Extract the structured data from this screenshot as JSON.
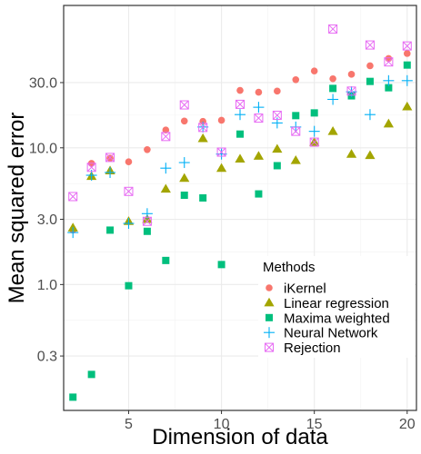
{
  "chart_data": {
    "type": "scatter",
    "xlabel": "Dimension of data",
    "ylabel": "Mean squared error",
    "xlim": [
      1.5,
      20.5
    ],
    "ylim": [
      0.12,
      110
    ],
    "y_scale": "log10",
    "x_ticks": [
      5,
      10,
      15,
      20
    ],
    "x_tick_labels": [
      "5",
      "10",
      "15",
      "20"
    ],
    "y_ticks": [
      0.3,
      1.0,
      3.0,
      10.0,
      30.0
    ],
    "y_tick_labels": [
      "0.3",
      "1.0",
      "3.0",
      "10.0",
      "30.0"
    ],
    "grid": true,
    "legend": {
      "title": "Methods",
      "placement": "bottom-right inside"
    },
    "series": [
      {
        "name": "iKernel",
        "shape": "circle",
        "color": "#F8766D",
        "x": [
          2,
          3,
          4,
          5,
          6,
          7,
          8,
          9,
          10,
          11,
          12,
          13,
          14,
          15,
          16,
          17,
          18,
          19,
          20
        ],
        "y": [
          2.5,
          7.7,
          8.4,
          7.9,
          9.7,
          13.5,
          15.7,
          15.6,
          15.9,
          26.3,
          25.5,
          26.0,
          31.5,
          36.5,
          32.0,
          34.5,
          39.8,
          45.0,
          49.0
        ]
      },
      {
        "name": "Linear regression",
        "shape": "triangle",
        "color": "#A3A500",
        "x": [
          2,
          3,
          4,
          5,
          6,
          7,
          8,
          9,
          10,
          11,
          12,
          13,
          14,
          15,
          16,
          17,
          18,
          19,
          20
        ],
        "y": [
          2.6,
          6.2,
          6.8,
          2.9,
          3.0,
          5.0,
          6.0,
          11.7,
          7.1,
          8.3,
          8.7,
          9.8,
          8.1,
          11.0,
          13.2,
          9.0,
          8.8,
          15.0,
          20.0
        ]
      },
      {
        "name": "Maxima weighted",
        "shape": "square",
        "color": "#00BF7D",
        "x": [
          2,
          3,
          4,
          5,
          6,
          7,
          8,
          9,
          10,
          11,
          12,
          13,
          14,
          15,
          16,
          17,
          18,
          19,
          20
        ],
        "y": [
          0.15,
          0.22,
          2.5,
          0.98,
          2.45,
          1.5,
          4.5,
          4.3,
          1.4,
          12.6,
          4.6,
          7.4,
          17.2,
          18.0,
          27.2,
          24.0,
          30.6,
          27.5,
          40.3
        ]
      },
      {
        "name": "Neural Network",
        "shape": "plus",
        "color": "#00B0F6",
        "x": [
          2,
          3,
          4,
          5,
          6,
          7,
          8,
          9,
          10,
          11,
          12,
          13,
          14,
          15,
          16,
          17,
          18,
          19,
          20
        ],
        "y": [
          2.4,
          6.3,
          6.6,
          2.8,
          3.3,
          7.1,
          7.8,
          14.2,
          9.0,
          17.5,
          19.8,
          15.2,
          14.2,
          13.2,
          22.6,
          25.7,
          17.5,
          31.0,
          31.0
        ]
      },
      {
        "name": "Rejection",
        "shape": "square-cross",
        "color": "#E76BF3",
        "x": [
          2,
          3,
          4,
          5,
          6,
          7,
          8,
          9,
          10,
          11,
          12,
          13,
          14,
          15,
          16,
          17,
          18,
          19,
          20
        ],
        "y": [
          4.4,
          7.2,
          8.5,
          4.8,
          2.9,
          12.1,
          20.6,
          14.1,
          9.3,
          20.8,
          16.5,
          17.3,
          13.2,
          11.0,
          74.0,
          26.0,
          56.5,
          42.5,
          55.6
        ]
      }
    ]
  }
}
